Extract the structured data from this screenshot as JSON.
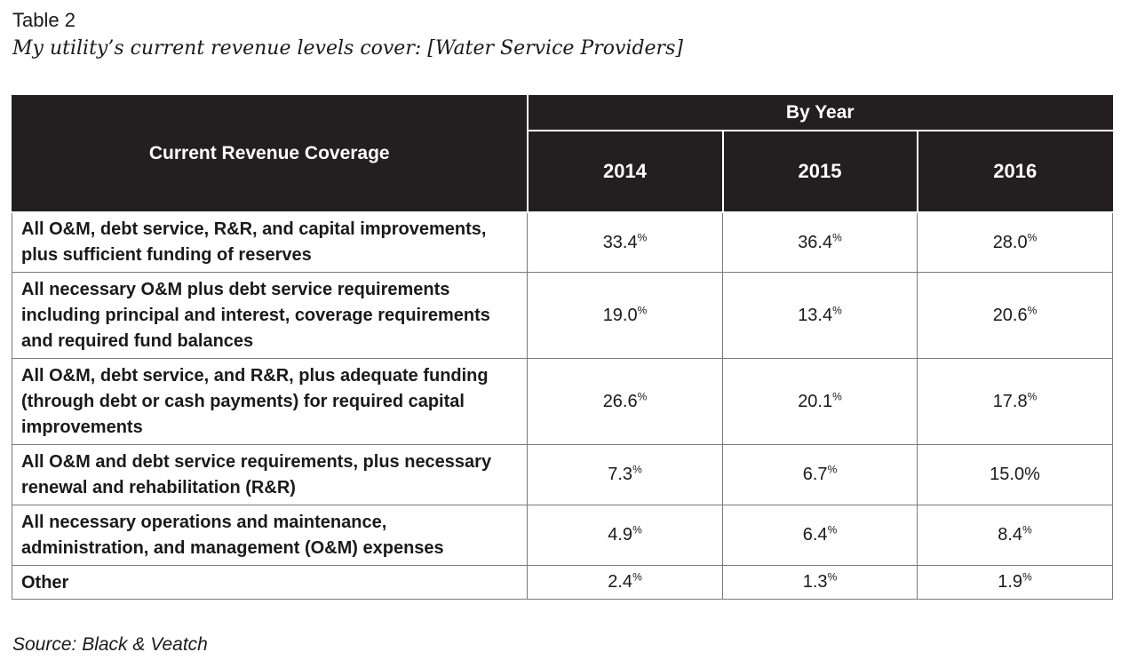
{
  "table_label": "Table 2",
  "table_title": "My utility’s current revenue levels cover: [Water Service Providers]",
  "header": {
    "main": "Current Revenue Coverage",
    "group": "By Year",
    "years": [
      "2014",
      "2015",
      "2016"
    ]
  },
  "rows": [
    {
      "label": "All O&M, debt service, R&R, and capital improvements, plus sufficient funding of reserves",
      "values": [
        "33.4",
        "36.4",
        "28.0"
      ],
      "units": [
        "%",
        "%",
        "%"
      ]
    },
    {
      "label": "All necessary O&M plus debt service requirements including principal and interest, coverage requirements and required fund balances",
      "values": [
        "19.0",
        "13.4",
        "20.6"
      ],
      "units": [
        "%",
        "%",
        "%"
      ]
    },
    {
      "label": "All O&M, debt service, and R&R, plus adequate funding (through debt or cash payments) for required capital improvements",
      "values": [
        "26.6",
        "20.1",
        "17.8"
      ],
      "units": [
        "%",
        "%",
        "%"
      ]
    },
    {
      "label": "All O&M and debt service requirements, plus necessary renewal and rehabilitation (R&R)",
      "values": [
        "7.3",
        "6.7",
        "15.0%"
      ],
      "units": [
        "%",
        "%",
        ""
      ]
    },
    {
      "label": "All necessary operations and maintenance, administration, and management (O&M) expenses",
      "values": [
        "4.9",
        "6.4",
        "8.4"
      ],
      "units": [
        "%",
        "%",
        "%"
      ]
    },
    {
      "label": "Other",
      "values": [
        "2.4",
        "1.3",
        "1.9"
      ],
      "units": [
        "%",
        "%",
        "%"
      ]
    }
  ],
  "source": "Source: Black & Veatch"
}
